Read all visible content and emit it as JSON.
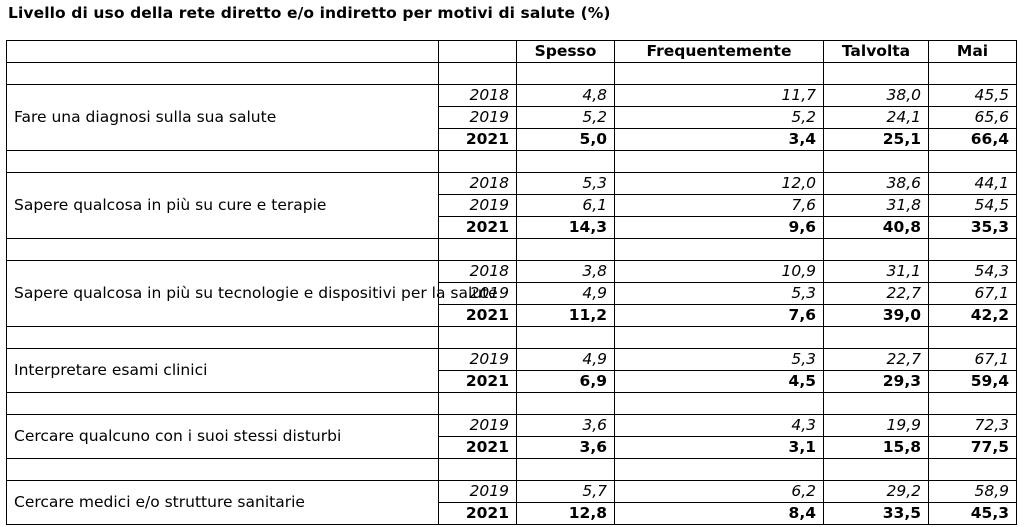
{
  "title": "Livello di uso della rete diretto e/o indiretto per motivi di salute (%)",
  "columns": [
    "Spesso",
    "Frequentemente",
    "Talvolta",
    "Mai"
  ],
  "groups": [
    {
      "label": "Fare una diagnosi sulla sua salute",
      "rows": [
        {
          "year": "2018",
          "values": [
            "4,8",
            "11,7",
            "38,0",
            "45,5"
          ],
          "bold": false
        },
        {
          "year": "2019",
          "values": [
            "5,2",
            "5,2",
            "24,1",
            "65,6"
          ],
          "bold": false
        },
        {
          "year": "2021",
          "values": [
            "5,0",
            "3,4",
            "25,1",
            "66,4"
          ],
          "bold": true
        }
      ]
    },
    {
      "label": "Sapere qualcosa in più su cure e terapie",
      "rows": [
        {
          "year": "2018",
          "values": [
            "5,3",
            "12,0",
            "38,6",
            "44,1"
          ],
          "bold": false
        },
        {
          "year": "2019",
          "values": [
            "6,1",
            "7,6",
            "31,8",
            "54,5"
          ],
          "bold": false
        },
        {
          "year": "2021",
          "values": [
            "14,3",
            "9,6",
            "40,8",
            "35,3"
          ],
          "bold": true
        }
      ]
    },
    {
      "label": "Sapere qualcosa in più su tecnologie e dispositivi per la salute",
      "rows": [
        {
          "year": "2018",
          "values": [
            "3,8",
            "10,9",
            "31,1",
            "54,3"
          ],
          "bold": false
        },
        {
          "year": "2019",
          "values": [
            "4,9",
            "5,3",
            "22,7",
            "67,1"
          ],
          "bold": false
        },
        {
          "year": "2021",
          "values": [
            "11,2",
            "7,6",
            "39,0",
            "42,2"
          ],
          "bold": true
        }
      ]
    },
    {
      "label": "Interpretare esami clinici",
      "rows": [
        {
          "year": "2019",
          "values": [
            "4,9",
            "5,3",
            "22,7",
            "67,1"
          ],
          "bold": false
        },
        {
          "year": "2021",
          "values": [
            "6,9",
            "4,5",
            "29,3",
            "59,4"
          ],
          "bold": true
        }
      ]
    },
    {
      "label": "Cercare qualcuno con i suoi stessi disturbi",
      "rows": [
        {
          "year": "2019",
          "values": [
            "3,6",
            "4,3",
            "19,9",
            "72,3"
          ],
          "bold": false
        },
        {
          "year": "2021",
          "values": [
            "3,6",
            "3,1",
            "15,8",
            "77,5"
          ],
          "bold": true
        }
      ]
    },
    {
      "label": "Cercare medici e/o strutture sanitarie",
      "rows": [
        {
          "year": "2019",
          "values": [
            "5,7",
            "6,2",
            "29,2",
            "58,9"
          ],
          "bold": false
        },
        {
          "year": "2021",
          "values": [
            "12,8",
            "8,4",
            "33,5",
            "45,3"
          ],
          "bold": true
        }
      ]
    }
  ]
}
